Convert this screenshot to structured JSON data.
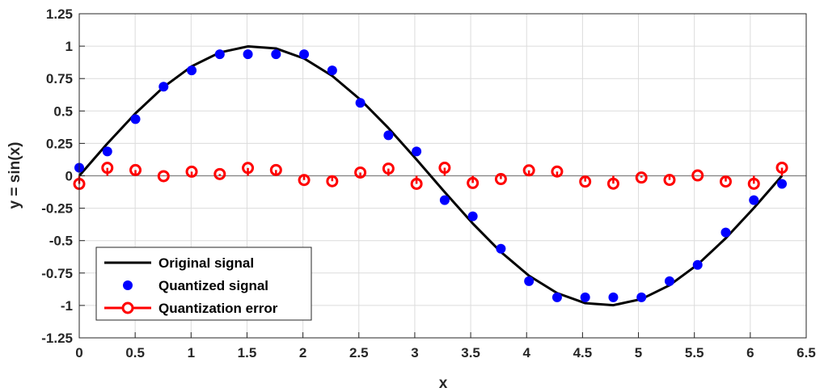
{
  "chart_data": {
    "type": "line",
    "title": "",
    "xlabel": "x",
    "ylabel": "y = sin(x)",
    "xlim": [
      0,
      6.5
    ],
    "ylim": [
      -1.25,
      1.25
    ],
    "grid": true,
    "legend_position": "bottom-left",
    "x_ticks": [
      "0",
      "0.5",
      "1",
      "1.5",
      "2",
      "2.5",
      "3",
      "3.5",
      "4",
      "4.5",
      "5",
      "5.5",
      "6",
      "6.5"
    ],
    "y_ticks": [
      "1.25",
      "1",
      "0.75",
      "0.5",
      "0.25",
      "0",
      "-0.25",
      "-0.5",
      "-0.75",
      "-1",
      "-1.25"
    ],
    "x": [
      0,
      0.2513,
      0.5027,
      0.754,
      1.0053,
      1.2566,
      1.508,
      1.7593,
      2.0106,
      2.2619,
      2.5133,
      2.7646,
      3.0159,
      3.2673,
      3.5186,
      3.7699,
      4.0212,
      4.2726,
      4.5239,
      4.7752,
      5.0265,
      5.2779,
      5.5292,
      5.7805,
      6.0319,
      6.2832
    ],
    "series": [
      {
        "name": "Original signal",
        "style": "line",
        "color": "#000000",
        "values": [
          0,
          0.2487,
          0.4818,
          0.6845,
          0.8443,
          0.9511,
          0.998,
          0.9823,
          0.9048,
          0.7705,
          0.5878,
          0.3681,
          0.1253,
          -0.1253,
          -0.3681,
          -0.5878,
          -0.7705,
          -0.9048,
          -0.9823,
          -0.998,
          -0.9511,
          -0.8443,
          -0.6845,
          -0.4818,
          -0.2487,
          0
        ]
      },
      {
        "name": "Quantized signal",
        "style": "markers",
        "color": "#0000ff",
        "values": [
          0.0625,
          0.1875,
          0.4375,
          0.6875,
          0.8125,
          0.9375,
          0.9375,
          0.9375,
          0.9375,
          0.8125,
          0.5625,
          0.3125,
          0.1875,
          -0.1875,
          -0.3125,
          -0.5625,
          -0.8125,
          -0.9375,
          -0.9375,
          -0.9375,
          -0.9375,
          -0.8125,
          -0.6875,
          -0.4375,
          -0.1875,
          -0.0625
        ]
      },
      {
        "name": "Quantization error",
        "style": "stem",
        "color": "#ff0000",
        "values": [
          -0.0625,
          0.0612,
          0.0443,
          -0.003,
          0.0318,
          0.0136,
          0.0605,
          0.0448,
          -0.0327,
          -0.042,
          0.0253,
          0.0556,
          -0.0622,
          0.0622,
          -0.0556,
          -0.0253,
          0.042,
          0.0327,
          -0.0448,
          -0.0605,
          -0.0136,
          -0.0318,
          0.003,
          -0.0443,
          -0.0612,
          0.0625
        ]
      }
    ]
  }
}
